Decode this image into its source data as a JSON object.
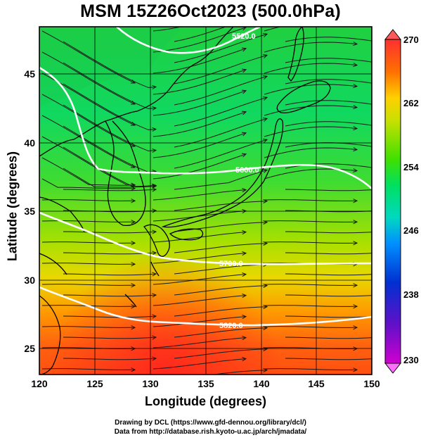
{
  "title": "MSM 15Z26Oct2023 (500.0hPa)",
  "xlabel": "Longitude (degrees)",
  "ylabel": "Latitude  (degrees)",
  "credits": [
    "Drawing by DCL (https://www.gfd-dennou.org/library/dcl/)",
    "Data from http://database.rish.kyoto-u.ac.jp/arch/jmadata/"
  ],
  "map": {
    "lon_range": [
      120,
      150
    ],
    "lat_range": [
      22.5,
      47.6
    ],
    "lon_ticks": [
      "120",
      "125",
      "130",
      "135",
      "140",
      "145",
      "150"
    ],
    "lat_ticks": [
      "25",
      "30",
      "35",
      "40",
      "45"
    ],
    "contour_labels": [
      "5520.0",
      "5600.0",
      "5700.0",
      "5820.0"
    ],
    "contour_color": "#ffffff",
    "coast_color": "#000000"
  },
  "colorbar": {
    "ticks": [
      "270",
      "262",
      "254",
      "246",
      "238",
      "230"
    ],
    "range": [
      230,
      270
    ],
    "colors": [
      "#e000e0",
      "#7000d0",
      "#0010c0",
      "#0070ff",
      "#00d0d0",
      "#00e070",
      "#20e000",
      "#a0e000",
      "#f0e000",
      "#ff8000",
      "#ff2000",
      "#ff5050"
    ]
  }
}
